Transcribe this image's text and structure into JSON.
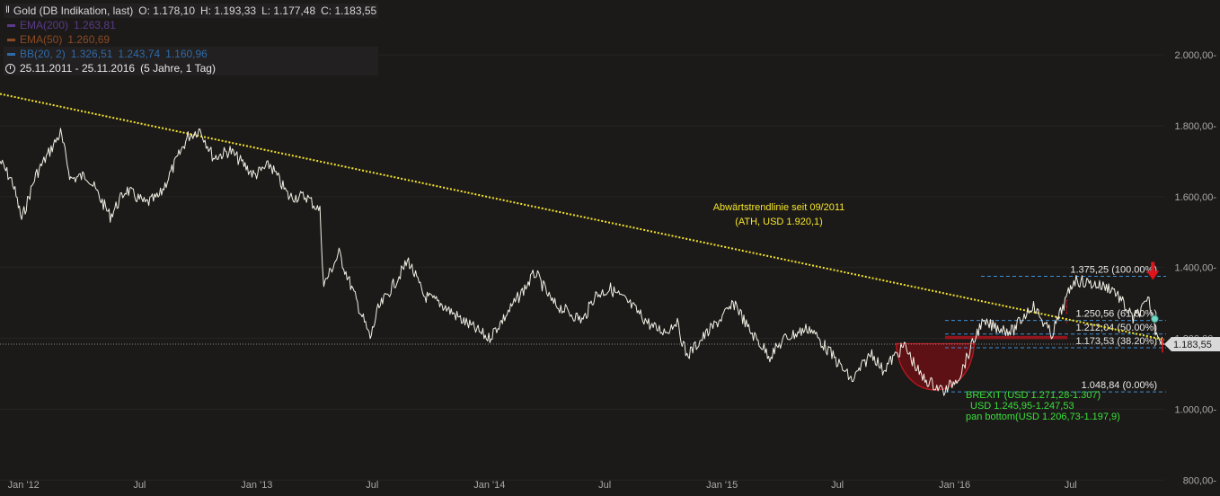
{
  "header": {
    "title": "Gold (DB Indikation, last)",
    "open": "O: 1.178,10",
    "high": "H: 1.193,33",
    "low": "L: 1.177,48",
    "close": "C: 1.183,55",
    "ema200_label": "EMA(200)",
    "ema200_value": "1.263,81",
    "ema50_label": "EMA(50)",
    "ema50_value": "1.260,69",
    "bb_label": "BB(20, 2)",
    "bb_v1": "1.326,51",
    "bb_v2": "1.243,74",
    "bb_v3": "1.160,96",
    "period": "25.11.2011 - 25.11.2016",
    "period_note": "(5 Jahre, 1 Tag)"
  },
  "colors": {
    "background": "#1c1a19",
    "price": "#f2efe4",
    "trendline": "#f5e52a",
    "fib_line": "#3c8fd6",
    "red_zone": "#b3131b",
    "arrow": "#e0141c",
    "bb": "#2c6fb5",
    "ema50": "#7a2a14",
    "ema200": "#4b2a6e",
    "annotation_yellow": "#f5e52a",
    "annotation_green": "#39e13a"
  },
  "chart_data": {
    "type": "line",
    "y_scale": "linear",
    "ylim": [
      755,
      2155
    ],
    "xlim": [
      "2011-11-25",
      "2016-11-25"
    ],
    "y_ticks": [
      800,
      1000,
      1200,
      1400,
      1600,
      1800,
      2000
    ],
    "y_tick_labels": [
      "800,00-",
      "1.000,00-",
      "1.200,00-",
      "1.400,00-",
      "1.600,00-",
      "1.800,00-",
      "2.000,00-"
    ],
    "x_ticks": [
      "2012-01-01",
      "2012-07-01",
      "2013-01-01",
      "2013-07-01",
      "2014-01-01",
      "2014-07-01",
      "2015-01-01",
      "2015-07-01",
      "2016-01-01",
      "2016-07-01"
    ],
    "x_tick_labels": [
      "Jan '12",
      "Jul",
      "Jan '13",
      "Jul",
      "Jan '14",
      "Jul",
      "Jan '15",
      "Jul",
      "Jan '16",
      "Jul"
    ],
    "series": [
      {
        "x": [
          "2011-11-25",
          "2011-12-15",
          "2011-12-29",
          "2012-01-20",
          "2012-02-28",
          "2012-03-15",
          "2012-04-10",
          "2012-05-16",
          "2012-06-10",
          "2012-07-10",
          "2012-08-01",
          "2012-09-15",
          "2012-10-04",
          "2012-10-25",
          "2012-11-20",
          "2012-12-28",
          "2013-01-22",
          "2013-02-20",
          "2013-03-20",
          "2013-04-10",
          "2013-04-16",
          "2013-05-10",
          "2013-06-28",
          "2013-07-10",
          "2013-08-27",
          "2013-09-20",
          "2013-10-15",
          "2013-11-20",
          "2013-12-31",
          "2014-01-25",
          "2014-03-14",
          "2014-04-10",
          "2014-05-28",
          "2014-06-15",
          "2014-07-10",
          "2014-08-10",
          "2014-09-15",
          "2014-10-06",
          "2014-10-21",
          "2014-11-07",
          "2014-12-01",
          "2015-01-22",
          "2015-02-10",
          "2015-03-17",
          "2015-04-10",
          "2015-05-18",
          "2015-06-15",
          "2015-07-24",
          "2015-08-24",
          "2015-09-10",
          "2015-10-14",
          "2015-11-10",
          "2015-12-17",
          "2016-01-10",
          "2016-02-11",
          "2016-03-01",
          "2016-04-01",
          "2016-05-02",
          "2016-06-01",
          "2016-06-24",
          "2016-07-06",
          "2016-08-01",
          "2016-09-06",
          "2016-10-07",
          "2016-11-01",
          "2016-11-11",
          "2016-11-25"
        ],
        "y": [
          1700,
          1640,
          1535,
          1660,
          1780,
          1650,
          1660,
          1545,
          1620,
          1580,
          1600,
          1770,
          1790,
          1710,
          1730,
          1660,
          1690,
          1600,
          1600,
          1560,
          1350,
          1440,
          1200,
          1280,
          1420,
          1320,
          1300,
          1250,
          1200,
          1260,
          1385,
          1300,
          1250,
          1320,
          1340,
          1295,
          1230,
          1220,
          1250,
          1150,
          1200,
          1300,
          1230,
          1150,
          1200,
          1230,
          1170,
          1080,
          1160,
          1110,
          1180,
          1090,
          1050,
          1100,
          1240,
          1235,
          1220,
          1295,
          1210,
          1310,
          1365,
          1355,
          1340,
          1255,
          1305,
          1225,
          1183.55
        ]
      }
    ],
    "trendline": {
      "label": "Abwärtstrendlinie seit 09/2011",
      "label2": "(ATH, USD 1.920,1)",
      "x": [
        "2011-11-25",
        "2016-11-25"
      ],
      "y": [
        1890,
        1196
      ]
    },
    "fib_levels": [
      {
        "value": 1375.25,
        "label": "1.375,25 (100.00%)"
      },
      {
        "value": 1250.56,
        "label": "1.250,56 (61.80%)"
      },
      {
        "value": 1212.04,
        "label": "1.212,04 (50.00%)"
      },
      {
        "value": 1173.53,
        "label": "1.173,53 (38.20%)"
      },
      {
        "value": 1048.84,
        "label": "1.048,84 (0.00%)"
      }
    ],
    "fib_range": [
      "2015-12-17",
      "2016-11-25"
    ],
    "zones": [
      {
        "x": [
          "2016-06-24",
          "2016-11-25"
        ],
        "y": [
          1271.28,
          1307
        ]
      },
      {
        "x": [
          "2016-06-24",
          "2016-11-25"
        ],
        "y": [
          1245.95,
          1247.53
        ]
      },
      {
        "x": [
          "2015-12-17",
          "2016-11-25"
        ],
        "y": [
          1197.9,
          1206.73
        ]
      }
    ],
    "pan_bottom": {
      "x": [
        "2015-10-01",
        "2016-02-01"
      ],
      "y_bottom": 1048.84,
      "y_top": 1185
    },
    "last_price": {
      "value": 1183.55,
      "label": "1.183,55"
    },
    "annotations": {
      "green": [
        "BREXIT (USD 1.271,28-1.307)",
        "USD 1.245,95-1.247,53",
        "pan bottom(USD 1.206,73-1.197,9)"
      ]
    }
  }
}
